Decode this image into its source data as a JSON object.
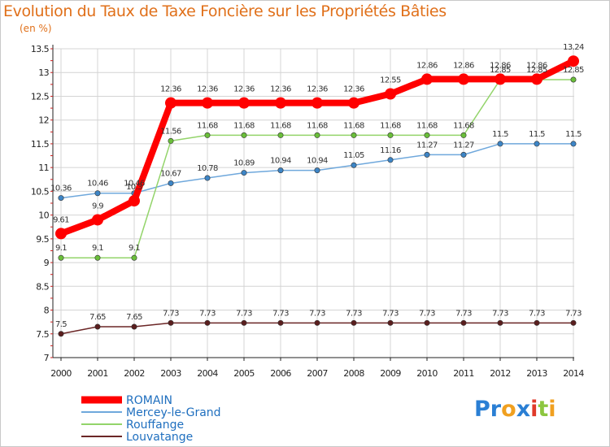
{
  "chart_data": {
    "type": "line",
    "title": "Evolution du Taux de Taxe Foncière sur les Propriétés Bâties",
    "ylabel": "(en %)",
    "xlabel": "",
    "ylim": [
      7,
      13.5
    ],
    "yticks": [
      "7",
      "7.5",
      "8",
      "8.5",
      "9",
      "9.5",
      "10",
      "10.5",
      "11",
      "11.5",
      "12",
      "12.5",
      "13",
      "13.5"
    ],
    "categories": [
      "2000",
      "2001",
      "2002",
      "2003",
      "2004",
      "2005",
      "2006",
      "2007",
      "2008",
      "2009",
      "2010",
      "2011",
      "2012",
      "2013",
      "2014"
    ],
    "series": [
      {
        "name": "ROMAIN",
        "color": "#ff0000",
        "values": [
          9.61,
          9.9,
          10.3,
          12.36,
          12.36,
          12.36,
          12.36,
          12.36,
          12.36,
          12.55,
          12.86,
          12.86,
          12.86,
          12.86,
          13.24
        ],
        "labels": [
          "9.61",
          "9.9",
          "10.3",
          "12.36",
          "12.36",
          "12.36",
          "12.36",
          "12.36",
          "12.36",
          "12.55",
          "12.86",
          "12.86",
          "12.86",
          "12.86",
          "13.24"
        ]
      },
      {
        "name": "Mercey-le-Grand",
        "color": "#5b9bd5",
        "values": [
          10.36,
          10.46,
          10.46,
          10.67,
          10.78,
          10.89,
          10.94,
          10.94,
          11.05,
          11.16,
          11.27,
          11.27,
          11.5,
          11.5,
          11.5
        ],
        "labels": [
          "10.36",
          "10.46",
          "10.46",
          "10.67",
          "10.78",
          "10.89",
          "10.94",
          "10.94",
          "11.05",
          "11.16",
          "11.27",
          "11.27",
          "11.5",
          "11.5",
          "11.5"
        ]
      },
      {
        "name": "Rouffange",
        "color": "#7fd04f",
        "values": [
          9.1,
          9.1,
          9.1,
          11.56,
          11.68,
          11.68,
          11.68,
          11.68,
          11.68,
          11.68,
          11.68,
          11.68,
          12.85,
          12.85,
          12.85
        ],
        "labels": [
          "9.1",
          "9.1",
          "9.1",
          "11.56",
          "11.68",
          "11.68",
          "11.68",
          "11.68",
          "11.68",
          "11.68",
          "11.68",
          "11.68",
          "12.85",
          "12.85",
          "12.85"
        ]
      },
      {
        "name": "Louvatange",
        "color": "#6b2626",
        "values": [
          7.5,
          7.65,
          7.65,
          7.73,
          7.73,
          7.73,
          7.73,
          7.73,
          7.73,
          7.73,
          7.73,
          7.73,
          7.73,
          7.73,
          7.73
        ],
        "labels": [
          "7.5",
          "7.65",
          "7.65",
          "7.73",
          "7.73",
          "7.73",
          "7.73",
          "7.73",
          "7.73",
          "7.73",
          "7.73",
          "7.73",
          "7.73",
          "7.73",
          "7.73"
        ]
      }
    ],
    "legend_position": "bottom-left"
  },
  "brand": {
    "letters": [
      "P",
      "r",
      "o",
      "x",
      "i",
      "t",
      "i"
    ],
    "colors": [
      "#2a7fd4",
      "#2a7fd4",
      "#f0a020",
      "#2a7fd4",
      "#e03a2a",
      "#8cc63f",
      "#f0a020"
    ]
  }
}
